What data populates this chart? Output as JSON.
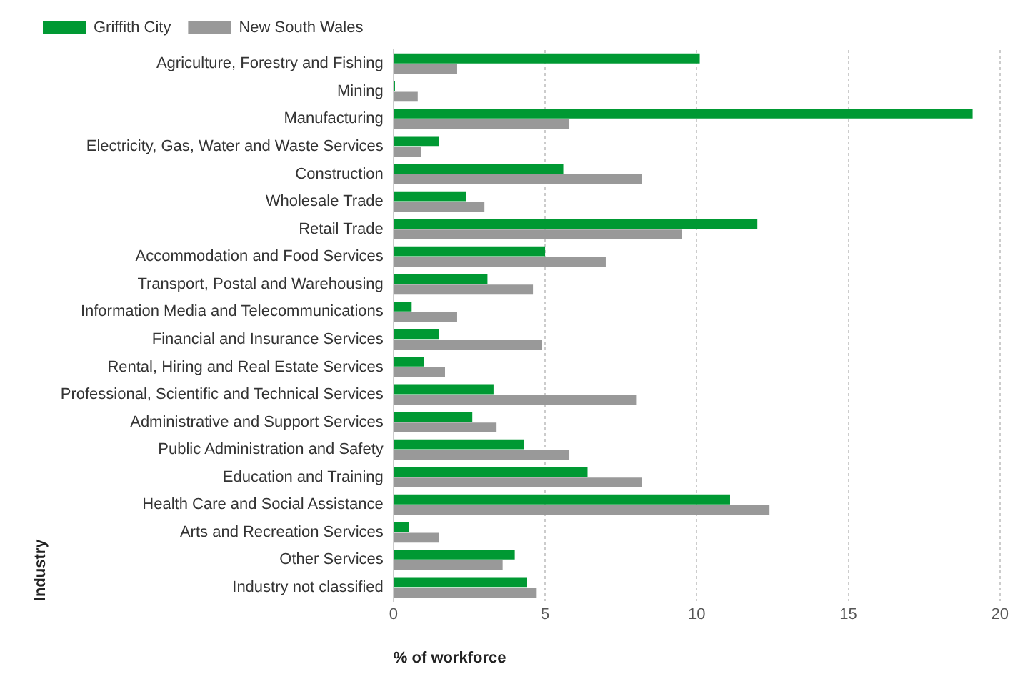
{
  "chart_data": {
    "type": "bar",
    "orientation": "horizontal",
    "xlabel": "% of workforce",
    "ylabel": "Industry",
    "categories": [
      "Agriculture, Forestry and Fishing",
      "Mining",
      "Manufacturing",
      "Electricity, Gas, Water and Waste Services",
      "Construction",
      "Wholesale Trade",
      "Retail Trade",
      "Accommodation and Food Services",
      "Transport, Postal and Warehousing",
      "Information Media and Telecommunications",
      "Financial and Insurance Services",
      "Rental, Hiring and Real Estate Services",
      "Professional, Scientific and Technical Services",
      "Administrative and Support Services",
      "Public Administration and Safety",
      "Education and Training",
      "Health Care and Social Assistance",
      "Arts and Recreation Services",
      "Other Services",
      "Industry not classified"
    ],
    "series": [
      {
        "name": "Griffith City",
        "color": "#009933",
        "values": [
          10.1,
          0.05,
          19.1,
          1.5,
          5.6,
          2.4,
          12.0,
          5.0,
          3.1,
          0.6,
          1.5,
          1.0,
          3.3,
          2.6,
          4.3,
          6.4,
          11.1,
          0.5,
          4.0,
          4.4
        ]
      },
      {
        "name": "New South Wales",
        "color": "#999999",
        "values": [
          2.1,
          0.8,
          5.8,
          0.9,
          8.2,
          3.0,
          9.5,
          7.0,
          4.6,
          2.1,
          4.9,
          1.7,
          8.0,
          3.4,
          5.8,
          8.2,
          12.4,
          1.5,
          3.6,
          4.7
        ]
      }
    ],
    "xlim": [
      0,
      20
    ],
    "xticks": [
      0,
      5,
      10,
      15,
      20
    ],
    "grid": "x",
    "legend": "top left"
  }
}
